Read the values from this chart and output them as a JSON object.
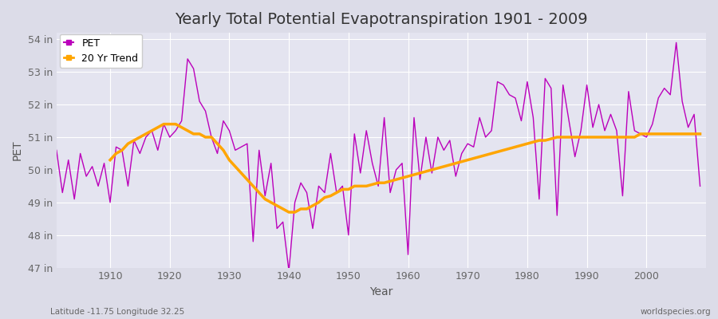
{
  "title": "Yearly Total Potential Evapotranspiration 1901 - 2009",
  "ylabel": "PET",
  "xlabel": "Year",
  "footer_left": "Latitude -11.75 Longitude 32.25",
  "footer_right": "worldspecies.org",
  "years": [
    1901,
    1902,
    1903,
    1904,
    1905,
    1906,
    1907,
    1908,
    1909,
    1910,
    1911,
    1912,
    1913,
    1914,
    1915,
    1916,
    1917,
    1918,
    1919,
    1920,
    1921,
    1922,
    1923,
    1924,
    1925,
    1926,
    1927,
    1928,
    1929,
    1930,
    1931,
    1932,
    1933,
    1934,
    1935,
    1936,
    1937,
    1938,
    1939,
    1940,
    1941,
    1942,
    1943,
    1944,
    1945,
    1946,
    1947,
    1948,
    1949,
    1950,
    1951,
    1952,
    1953,
    1954,
    1955,
    1956,
    1957,
    1958,
    1959,
    1960,
    1961,
    1962,
    1963,
    1964,
    1965,
    1966,
    1967,
    1968,
    1969,
    1970,
    1971,
    1972,
    1973,
    1974,
    1975,
    1976,
    1977,
    1978,
    1979,
    1980,
    1981,
    1982,
    1983,
    1984,
    1985,
    1986,
    1987,
    1988,
    1989,
    1990,
    1991,
    1992,
    1993,
    1994,
    1995,
    1996,
    1997,
    1998,
    1999,
    2000,
    2001,
    2002,
    2003,
    2004,
    2005,
    2006,
    2007,
    2008,
    2009
  ],
  "pet": [
    50.6,
    49.3,
    50.3,
    49.1,
    50.5,
    49.8,
    50.1,
    49.5,
    50.2,
    49.0,
    50.7,
    50.6,
    49.5,
    50.9,
    50.5,
    51.0,
    51.2,
    50.6,
    51.4,
    51.0,
    51.2,
    51.5,
    53.4,
    53.1,
    52.1,
    51.8,
    51.0,
    50.5,
    51.5,
    51.2,
    50.6,
    50.7,
    50.8,
    47.8,
    50.6,
    49.2,
    50.2,
    48.2,
    48.4,
    46.9,
    49.0,
    49.6,
    49.3,
    48.2,
    49.5,
    49.3,
    50.5,
    49.3,
    49.5,
    48.0,
    51.1,
    49.9,
    51.2,
    50.2,
    49.5,
    51.6,
    49.3,
    50.0,
    50.2,
    47.4,
    51.6,
    49.7,
    51.0,
    49.9,
    51.0,
    50.6,
    50.9,
    49.8,
    50.5,
    50.8,
    50.7,
    51.6,
    51.0,
    51.2,
    52.7,
    52.6,
    52.3,
    52.2,
    51.5,
    52.7,
    51.6,
    49.1,
    52.8,
    52.5,
    48.6,
    52.6,
    51.5,
    50.4,
    51.2,
    52.6,
    51.3,
    52.0,
    51.2,
    51.7,
    51.2,
    49.2,
    52.4,
    51.2,
    51.1,
    51.0,
    51.4,
    52.2,
    52.5,
    52.3,
    53.9,
    52.1,
    51.3,
    51.7,
    49.5
  ],
  "trend_years": [
    1910,
    1911,
    1912,
    1913,
    1914,
    1915,
    1916,
    1917,
    1918,
    1919,
    1920,
    1921,
    1922,
    1923,
    1924,
    1925,
    1926,
    1927,
    1928,
    1929,
    1930,
    1931,
    1932,
    1933,
    1934,
    1935,
    1936,
    1937,
    1938,
    1939,
    1940,
    1941,
    1942,
    1943,
    1944,
    1945,
    1946,
    1947,
    1948,
    1949,
    1950,
    1951,
    1952,
    1953,
    1954,
    1955,
    1956,
    1957,
    1958,
    1959,
    1960,
    1961,
    1962,
    1963,
    1964,
    1965,
    1966,
    1967,
    1968,
    1969,
    1970,
    1971,
    1972,
    1973,
    1974,
    1975,
    1976,
    1977,
    1978,
    1979,
    1980,
    1981,
    1982,
    1983,
    1984,
    1985,
    1986,
    1987,
    1988,
    1989,
    1990,
    1991,
    1992,
    1993,
    1994,
    1995,
    1996,
    1997,
    1998,
    1999,
    2000,
    2001,
    2002,
    2003,
    2004,
    2005,
    2006,
    2007,
    2008,
    2009
  ],
  "trend": [
    50.3,
    50.5,
    50.6,
    50.8,
    50.9,
    51.0,
    51.1,
    51.2,
    51.3,
    51.4,
    51.4,
    51.4,
    51.3,
    51.2,
    51.1,
    51.1,
    51.0,
    51.0,
    50.8,
    50.6,
    50.3,
    50.1,
    49.9,
    49.7,
    49.5,
    49.3,
    49.1,
    49.0,
    48.9,
    48.8,
    48.7,
    48.7,
    48.8,
    48.8,
    48.9,
    49.0,
    49.15,
    49.2,
    49.3,
    49.4,
    49.4,
    49.5,
    49.5,
    49.5,
    49.55,
    49.6,
    49.6,
    49.65,
    49.7,
    49.75,
    49.8,
    49.85,
    49.9,
    49.95,
    50.0,
    50.05,
    50.1,
    50.15,
    50.2,
    50.25,
    50.3,
    50.35,
    50.4,
    50.45,
    50.5,
    50.55,
    50.6,
    50.65,
    50.7,
    50.75,
    50.8,
    50.85,
    50.9,
    50.9,
    50.95,
    51.0,
    51.0,
    51.0,
    51.0,
    51.0,
    51.0,
    51.0,
    51.0,
    51.0,
    51.0,
    51.0,
    51.0,
    51.0,
    51.0,
    51.1,
    51.1,
    51.1,
    51.1,
    51.1,
    51.1,
    51.1,
    51.1,
    51.1,
    51.1,
    51.1
  ],
  "pet_color": "#BB00BB",
  "trend_color": "#FFA500",
  "bg_color": "#DCDCE8",
  "plot_bg_color": "#E4E4F0",
  "grid_color": "#FFFFFF",
  "ylim": [
    47,
    54.2
  ],
  "yticks": [
    47,
    48,
    49,
    50,
    51,
    52,
    53,
    54
  ],
  "ytick_labels": [
    "47 in",
    "48 in",
    "49 in",
    "50 in",
    "51 in",
    "52 in",
    "53 in",
    "54 in"
  ],
  "xticks": [
    1910,
    1920,
    1930,
    1940,
    1950,
    1960,
    1970,
    1980,
    1990,
    2000
  ],
  "xlim": [
    1901,
    2010
  ],
  "title_fontsize": 14,
  "label_fontsize": 10,
  "tick_fontsize": 9,
  "legend_fontsize": 9
}
